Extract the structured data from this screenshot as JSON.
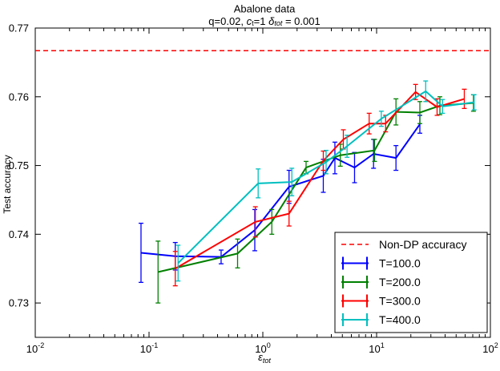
{
  "chart_data": {
    "type": "line",
    "title": "Abalone data",
    "subtitle": {
      "prefix": "q=0.02, ",
      "c": "c",
      "c_sub": "t",
      "c_val": "=1 ",
      "delta": "δ",
      "delta_sub": "tot",
      "delta_val": " = 0.001"
    },
    "xlabel": {
      "main": "ε",
      "sub": "tot"
    },
    "ylabel": "Test accuracy",
    "xscale": "log",
    "xlim": [
      0.01,
      100
    ],
    "ylim": [
      0.725,
      0.77
    ],
    "x_ticks": [
      {
        "value": 0.01,
        "base": "10",
        "exp": "-2"
      },
      {
        "value": 0.1,
        "base": "10",
        "exp": "-1"
      },
      {
        "value": 1,
        "base": "10",
        "exp": "0"
      },
      {
        "value": 10,
        "base": "10",
        "exp": "1"
      },
      {
        "value": 100,
        "base": "10",
        "exp": "2"
      }
    ],
    "y_ticks": [
      {
        "value": 0.73,
        "label": "0.73"
      },
      {
        "value": 0.74,
        "label": "0.74"
      },
      {
        "value": 0.75,
        "label": "0.75"
      },
      {
        "value": 0.76,
        "label": "0.76"
      },
      {
        "value": 0.77,
        "label": "0.77"
      }
    ],
    "reference_line": {
      "name": "Non-DP accuracy",
      "y": 0.7667,
      "color": "#ff0000",
      "style": "dashed"
    },
    "legend_position": "lower right",
    "series": [
      {
        "name": "T=100.0",
        "color": "#0000ff",
        "x": [
          0.085,
          0.17,
          0.43,
          0.85,
          1.7,
          3.4,
          4.3,
          6.4,
          9.4,
          14.8,
          24
        ],
        "y": [
          0.7373,
          0.7368,
          0.7367,
          0.7406,
          0.7469,
          0.7485,
          0.7511,
          0.7497,
          0.7517,
          0.7511,
          0.756
        ],
        "err": [
          0.0043,
          0.002,
          0.001,
          0.003,
          0.0024,
          0.0024,
          0.0023,
          0.0022,
          0.0021,
          0.0018,
          0.0013
        ]
      },
      {
        "name": "T=200.0",
        "color": "#008000",
        "x": [
          0.12,
          0.6,
          1.2,
          2.4,
          4.8,
          9.6,
          14.8,
          24,
          36,
          71
        ],
        "y": [
          0.7345,
          0.7372,
          0.7418,
          0.7497,
          0.7515,
          0.7522,
          0.7578,
          0.7577,
          0.7587,
          0.7591
        ],
        "err": [
          0.0045,
          0.0021,
          0.0018,
          0.0009,
          0.0016,
          0.0016,
          0.0019,
          0.0016,
          0.0013,
          0.0012
        ]
      },
      {
        "name": "T=300.0",
        "color": "#ff0000",
        "x": [
          0.17,
          0.86,
          1.7,
          3.4,
          5.1,
          8.6,
          12,
          22,
          34,
          59
        ],
        "y": [
          0.735,
          0.7418,
          0.743,
          0.7507,
          0.7538,
          0.7561,
          0.7561,
          0.7607,
          0.7585,
          0.7597
        ],
        "err": [
          0.0025,
          0.0022,
          0.0018,
          0.0014,
          0.0014,
          0.0015,
          0.0012,
          0.0011,
          0.0012,
          0.0014
        ]
      },
      {
        "name": "T=400.0",
        "color": "#00bfbf",
        "x": [
          0.18,
          0.91,
          1.8,
          3.6,
          5.5,
          11,
          27,
          38,
          72
        ],
        "y": [
          0.7358,
          0.7474,
          0.7476,
          0.7505,
          0.7528,
          0.7568,
          0.7608,
          0.7586,
          0.7592
        ],
        "err": [
          0.0026,
          0.0021,
          0.002,
          0.0017,
          0.0016,
          0.0011,
          0.0015,
          0.001,
          0.0011
        ]
      }
    ]
  }
}
